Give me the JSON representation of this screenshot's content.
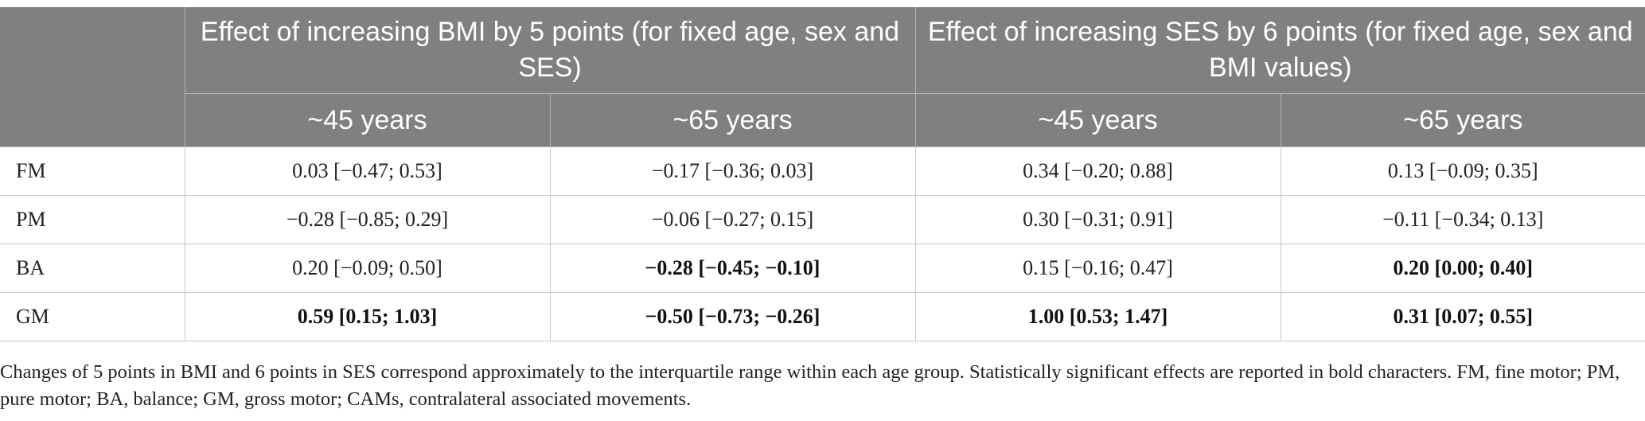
{
  "header": {
    "group1": "Effect of increasing BMI by 5 points (for fixed age, sex and SES)",
    "group2": "Effect of increasing SES by 6 points (for fixed age, sex and BMI values)",
    "sub": [
      "~45 years",
      "~65 years",
      "~45 years",
      "~65 years"
    ]
  },
  "rows": [
    {
      "label": "FM",
      "cells": [
        {
          "text": "0.03 [−0.47; 0.53]",
          "bold": false
        },
        {
          "text": "−0.17 [−0.36; 0.03]",
          "bold": false
        },
        {
          "text": "0.34 [−0.20; 0.88]",
          "bold": false
        },
        {
          "text": "0.13 [−0.09; 0.35]",
          "bold": false
        }
      ]
    },
    {
      "label": "PM",
      "cells": [
        {
          "text": "−0.28 [−0.85; 0.29]",
          "bold": false
        },
        {
          "text": "−0.06 [−0.27; 0.15]",
          "bold": false
        },
        {
          "text": "0.30 [−0.31; 0.91]",
          "bold": false
        },
        {
          "text": "−0.11 [−0.34; 0.13]",
          "bold": false
        }
      ]
    },
    {
      "label": "BA",
      "cells": [
        {
          "text": "0.20 [−0.09; 0.50]",
          "bold": false
        },
        {
          "text": "−0.28 [−0.45; −0.10]",
          "bold": true
        },
        {
          "text": "0.15 [−0.16; 0.47]",
          "bold": false
        },
        {
          "text": "0.20 [0.00; 0.40]",
          "bold": true
        }
      ]
    },
    {
      "label": "GM",
      "cells": [
        {
          "text": "0.59 [0.15; 1.03]",
          "bold": true
        },
        {
          "text": "−0.50 [−0.73; −0.26]",
          "bold": true
        },
        {
          "text": "1.00 [0.53; 1.47]",
          "bold": true
        },
        {
          "text": "0.31 [0.07; 0.55]",
          "bold": true
        }
      ]
    }
  ],
  "footnote": "Changes of 5 points in BMI and 6 points in SES correspond approximately to the interquartile range within each age group. Statistically significant effects are reported in bold characters. FM, fine motor; PM, pure motor; BA, balance; GM, gross motor; CAMs, contralateral associated movements."
}
